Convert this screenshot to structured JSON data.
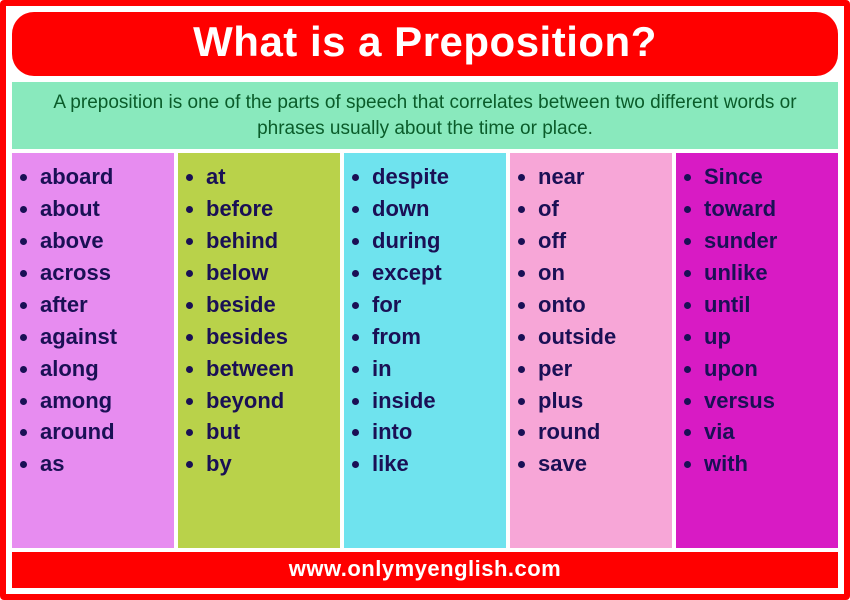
{
  "title": "What is a Preposition?",
  "definition": "A preposition is one of the parts of speech that correlates between two different words or phrases usually about the time or place.",
  "footer": "www.onlymyenglish.com",
  "colors": {
    "frame_border": "#ff0000",
    "title_bg": "#ff0000",
    "title_text": "#ffffff",
    "definition_bg": "#89e9bd",
    "definition_text": "#0a5c2a",
    "list_text": "#1a1055",
    "footer_bg": "#ff0000",
    "footer_text": "#ffffff"
  },
  "columns": [
    {
      "bg": "#e78cf0",
      "items": [
        "aboard",
        "about",
        "above",
        "across",
        "after",
        "against",
        "along",
        "among",
        "around",
        "as"
      ]
    },
    {
      "bg": "#b9d24a",
      "items": [
        "at",
        "before",
        "behind",
        "below",
        "beside",
        "besides",
        "between",
        "beyond",
        "but",
        "by"
      ]
    },
    {
      "bg": "#6fe3ee",
      "items": [
        "despite",
        "down",
        "during",
        "except",
        "for",
        "from",
        "in",
        "inside",
        "into",
        "like"
      ]
    },
    {
      "bg": "#f7a6d7",
      "items": [
        "near",
        "of",
        "off",
        "on",
        "onto",
        "outside",
        "per",
        "plus",
        "round",
        "save"
      ]
    },
    {
      "bg": "#d81bc4",
      "items": [
        "Since",
        "toward",
        "sunder",
        "unlike",
        "until",
        "up",
        "upon",
        "versus",
        "via",
        "with"
      ]
    }
  ],
  "typography": {
    "title_fontsize": 42,
    "definition_fontsize": 19,
    "list_fontsize": 22,
    "footer_fontsize": 22,
    "font_family": "Arial"
  }
}
